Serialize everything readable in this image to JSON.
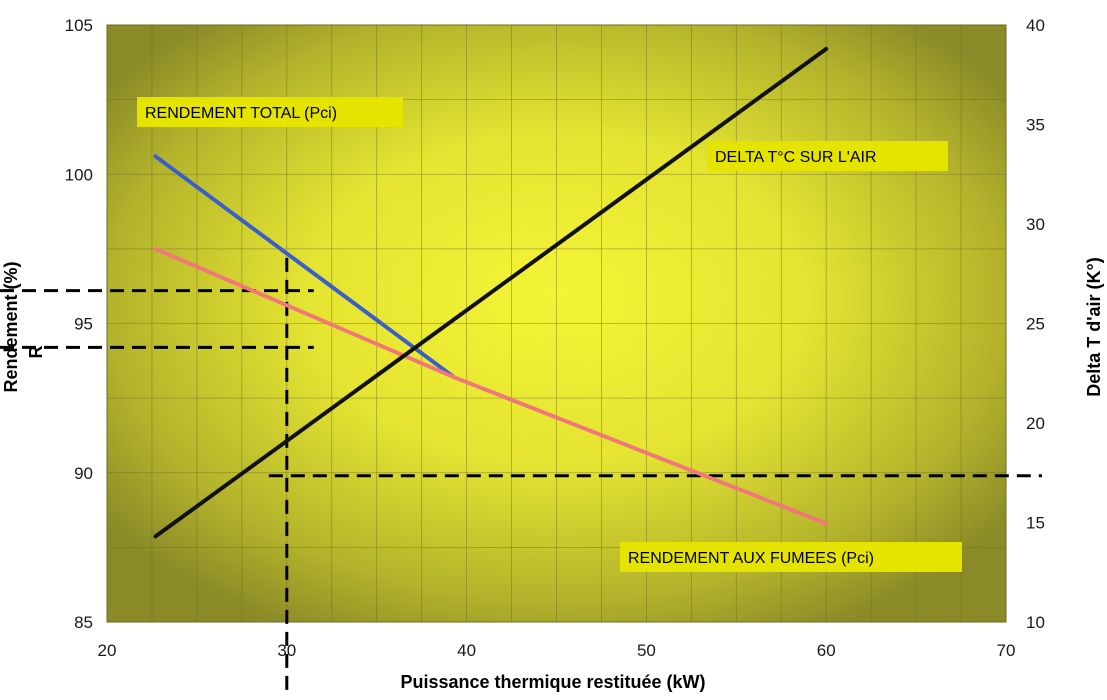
{
  "chart_data": {
    "type": "line",
    "xlabel": "Puissance  thermique  restituée  (kW)",
    "ylabel": "Rendement  (%)",
    "ylabel_stray": "R",
    "y2label": "Delta T d'air (K°)",
    "xlim": [
      20,
      70
    ],
    "ylim": [
      85,
      105
    ],
    "y2lim": [
      10,
      40
    ],
    "x_ticks": [
      "20",
      "30",
      "40",
      "50",
      "60",
      "70"
    ],
    "y_ticks": [
      "85",
      "90",
      "95",
      "100",
      "105"
    ],
    "y2_ticks": [
      "10",
      "15",
      "20",
      "25",
      "30",
      "35",
      "40"
    ],
    "grid": true,
    "background_colors": {
      "edge": "#8a8a28",
      "center": "#f2f233"
    },
    "series": [
      {
        "name": "RENDEMENT TOTAL (Pci)",
        "axis": "left",
        "color": "#3a5fc8",
        "x": [
          22.7,
          39.3
        ],
        "y": [
          100.6,
          93.2
        ]
      },
      {
        "name": "RENDEMENT AUX FUMEES (Pci)",
        "axis": "left",
        "color": "#f07878",
        "x": [
          22.7,
          39.3,
          60.0
        ],
        "y": [
          97.5,
          93.2,
          88.3
        ]
      },
      {
        "name": "DELTA T°C SUR L'AIR",
        "axis": "right",
        "color": "#111111",
        "x": [
          22.7,
          60.0
        ],
        "y": [
          14.3,
          38.8
        ]
      }
    ],
    "annotations": [
      {
        "text": "RENDEMENT TOTAL (Pci)",
        "position": "top-left"
      },
      {
        "text": "DELTA T°C SUR L'AIR",
        "position": "upper-right"
      },
      {
        "text": "RENDEMENT AUX FUMEES (Pci)",
        "position": "bottom-right"
      }
    ],
    "reference_lines": [
      {
        "type": "vertical",
        "axis": "x",
        "value": 30
      },
      {
        "type": "horizontal",
        "axis": "left",
        "value": 96.1,
        "x_range": [
          20,
          31.5
        ]
      },
      {
        "type": "horizontal",
        "axis": "left",
        "value": 94.2,
        "x_range": [
          20,
          31.5
        ]
      },
      {
        "type": "horizontal",
        "axis": "left",
        "value": 89.9,
        "x_range": [
          29,
          72
        ]
      }
    ]
  }
}
